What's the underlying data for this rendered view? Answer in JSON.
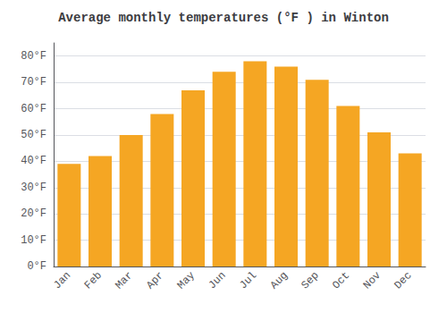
{
  "chart_data": {
    "type": "bar",
    "title": "Average monthly temperatures (°F ) in Winton",
    "categories": [
      "Jan",
      "Feb",
      "Mar",
      "Apr",
      "May",
      "Jun",
      "Jul",
      "Aug",
      "Sep",
      "Oct",
      "Nov",
      "Dec"
    ],
    "values": [
      39,
      42,
      50,
      58,
      67,
      74,
      78,
      76,
      71,
      61,
      51,
      43
    ],
    "color": "#F5A623",
    "ylim": [
      0,
      85
    ],
    "yticks": [
      {
        "value": 0,
        "label": "0°F"
      },
      {
        "value": 10,
        "label": "10°F"
      },
      {
        "value": 20,
        "label": "20°F"
      },
      {
        "value": 30,
        "label": "30°F"
      },
      {
        "value": 40,
        "label": "40°F"
      },
      {
        "value": 50,
        "label": "50°F"
      },
      {
        "value": 60,
        "label": "60°F"
      },
      {
        "value": 70,
        "label": "70°F"
      },
      {
        "value": 80,
        "label": "80°F"
      }
    ],
    "grid": true
  }
}
